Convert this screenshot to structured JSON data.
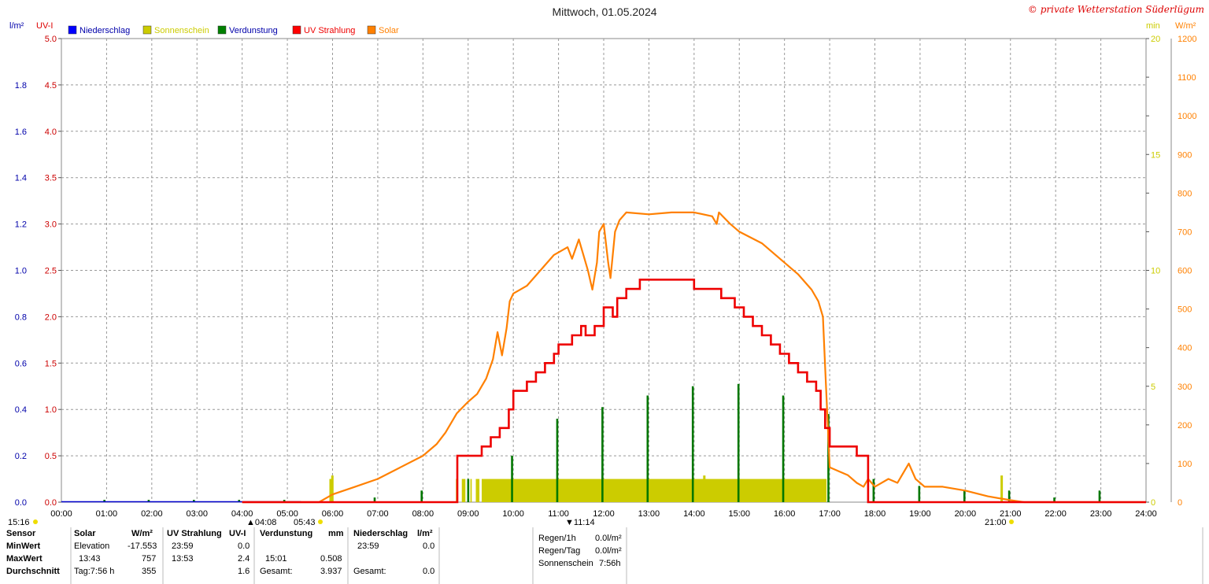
{
  "title": "Mittwoch, 01.05.2024",
  "copyright": "© private Wetterstation Süderlügum",
  "units": {
    "left1": "l/m²",
    "left2": "UV-I",
    "right1": "min",
    "right2": "W/m²"
  },
  "legend": [
    {
      "label": "Niederschlag",
      "color": "#0000ff",
      "text_color": "#0000aa"
    },
    {
      "label": "Sonnenschein",
      "color": "#cccc00",
      "text_color": "#cccc00"
    },
    {
      "label": "Verdunstung",
      "color": "#008000",
      "text_color": "#0000aa"
    },
    {
      "label": "UV Strahlung",
      "color": "#ff0000",
      "text_color": "#ee0000"
    },
    {
      "label": "Solar",
      "color": "#ff8000",
      "text_color": "#ff8000"
    }
  ],
  "colors": {
    "precip": "#0000cc",
    "uv": "#ee0000",
    "sun": "#cccc00",
    "solar": "#ff8000",
    "evap": "#007700",
    "axis": "#888888"
  },
  "chart_data": {
    "type": "line",
    "x_ticks": [
      "00:00",
      "01:00",
      "02:00",
      "03:00",
      "04:00",
      "05:00",
      "06:00",
      "07:00",
      "08:00",
      "09:00",
      "10:00",
      "11:00",
      "12:00",
      "13:00",
      "14:00",
      "15:00",
      "16:00",
      "17:00",
      "18:00",
      "19:00",
      "20:00",
      "21:00",
      "22:00",
      "23:00",
      "24:00"
    ],
    "axes": {
      "precip": {
        "range": [
          0,
          2.0
        ],
        "ticks": [
          "0.0",
          "0.2",
          "0.4",
          "0.6",
          "0.8",
          "1.0",
          "1.2",
          "1.4",
          "1.6",
          "1.8"
        ]
      },
      "uv": {
        "range": [
          0,
          5.0
        ],
        "ticks": [
          "0.0",
          "0.5",
          "1.0",
          "1.5",
          "2.0",
          "2.5",
          "3.0",
          "3.5",
          "4.0",
          "4.5",
          "5.0"
        ]
      },
      "sunshine": {
        "range": [
          0,
          20
        ],
        "ticks": [
          "0",
          "5",
          "10",
          "15",
          "20"
        ]
      },
      "solar": {
        "range": [
          0,
          1200
        ],
        "ticks": [
          "0",
          "100",
          "200",
          "300",
          "400",
          "500",
          "600",
          "700",
          "800",
          "900",
          "1000",
          "1100",
          "1200"
        ]
      }
    },
    "solar": [
      [
        4.0,
        0
      ],
      [
        5.7,
        0
      ],
      [
        6.0,
        20
      ],
      [
        6.5,
        40
      ],
      [
        7.0,
        60
      ],
      [
        7.5,
        90
      ],
      [
        8.0,
        120
      ],
      [
        8.3,
        150
      ],
      [
        8.5,
        180
      ],
      [
        8.75,
        230
      ],
      [
        9.0,
        260
      ],
      [
        9.2,
        280
      ],
      [
        9.4,
        320
      ],
      [
        9.55,
        370
      ],
      [
        9.65,
        440
      ],
      [
        9.75,
        380
      ],
      [
        9.85,
        450
      ],
      [
        9.92,
        520
      ],
      [
        10.0,
        540
      ],
      [
        10.3,
        560
      ],
      [
        10.6,
        600
      ],
      [
        10.9,
        640
      ],
      [
        11.2,
        660
      ],
      [
        11.3,
        630
      ],
      [
        11.45,
        680
      ],
      [
        11.55,
        640
      ],
      [
        11.65,
        600
      ],
      [
        11.75,
        550
      ],
      [
        11.85,
        620
      ],
      [
        11.9,
        700
      ],
      [
        12.0,
        720
      ],
      [
        12.1,
        620
      ],
      [
        12.15,
        580
      ],
      [
        12.25,
        700
      ],
      [
        12.35,
        730
      ],
      [
        12.5,
        750
      ],
      [
        13.0,
        745
      ],
      [
        13.5,
        750
      ],
      [
        14.0,
        750
      ],
      [
        14.4,
        740
      ],
      [
        14.5,
        720
      ],
      [
        14.55,
        750
      ],
      [
        14.8,
        720
      ],
      [
        15.0,
        700
      ],
      [
        15.5,
        670
      ],
      [
        16.0,
        620
      ],
      [
        16.3,
        590
      ],
      [
        16.6,
        550
      ],
      [
        16.75,
        520
      ],
      [
        16.85,
        480
      ],
      [
        16.9,
        350
      ],
      [
        16.95,
        220
      ],
      [
        17.0,
        90
      ],
      [
        17.2,
        80
      ],
      [
        17.4,
        70
      ],
      [
        17.6,
        50
      ],
      [
        17.75,
        40
      ],
      [
        17.85,
        60
      ],
      [
        18.0,
        40
      ],
      [
        18.3,
        60
      ],
      [
        18.5,
        50
      ],
      [
        18.75,
        100
      ],
      [
        18.9,
        60
      ],
      [
        19.1,
        40
      ],
      [
        19.5,
        40
      ],
      [
        20.0,
        30
      ],
      [
        20.5,
        15
      ],
      [
        21.0,
        5
      ],
      [
        21.3,
        0
      ],
      [
        24.0,
        0
      ]
    ],
    "uv": [
      [
        4.0,
        0
      ],
      [
        8.75,
        0
      ],
      [
        8.76,
        0.5
      ],
      [
        9.2,
        0.5
      ],
      [
        9.3,
        0.6
      ],
      [
        9.5,
        0.7
      ],
      [
        9.7,
        0.8
      ],
      [
        9.9,
        1.0
      ],
      [
        10.0,
        1.2
      ],
      [
        10.3,
        1.3
      ],
      [
        10.5,
        1.4
      ],
      [
        10.7,
        1.5
      ],
      [
        10.9,
        1.6
      ],
      [
        11.0,
        1.7
      ],
      [
        11.3,
        1.8
      ],
      [
        11.5,
        1.9
      ],
      [
        11.6,
        1.8
      ],
      [
        11.8,
        1.9
      ],
      [
        12.0,
        2.1
      ],
      [
        12.2,
        2.0
      ],
      [
        12.3,
        2.2
      ],
      [
        12.5,
        2.3
      ],
      [
        12.8,
        2.4
      ],
      [
        13.1,
        2.4
      ],
      [
        13.2,
        2.4
      ],
      [
        13.9,
        2.4
      ],
      [
        14.0,
        2.3
      ],
      [
        14.5,
        2.3
      ],
      [
        14.6,
        2.2
      ],
      [
        14.8,
        2.2
      ],
      [
        14.9,
        2.1
      ],
      [
        15.1,
        2.0
      ],
      [
        15.3,
        1.9
      ],
      [
        15.5,
        1.8
      ],
      [
        15.7,
        1.7
      ],
      [
        15.9,
        1.6
      ],
      [
        16.1,
        1.5
      ],
      [
        16.3,
        1.4
      ],
      [
        16.5,
        1.3
      ],
      [
        16.7,
        1.2
      ],
      [
        16.8,
        1.0
      ],
      [
        16.9,
        0.8
      ],
      [
        17.0,
        0.6
      ],
      [
        17.4,
        0.6
      ],
      [
        17.6,
        0.5
      ],
      [
        17.8,
        0.5
      ],
      [
        17.85,
        0
      ],
      [
        24.0,
        0
      ]
    ],
    "sunshine": {
      "segments": [
        [
          5.93,
          6.0
        ],
        [
          8.73,
          8.78
        ],
        [
          8.86,
          8.94
        ],
        [
          9.05,
          9.08
        ],
        [
          9.17,
          9.25
        ],
        [
          9.3,
          16.93
        ]
      ],
      "level": 1.0,
      "spikes": [
        [
          5.97,
          1.0
        ],
        [
          14.2,
          1.0
        ],
        [
          20.78,
          1.0
        ]
      ]
    },
    "evaporation": [
      [
        0.95,
        0.01
      ],
      [
        1.93,
        0.01
      ],
      [
        2.93,
        0.01
      ],
      [
        3.93,
        0.01
      ],
      [
        4.93,
        0.01
      ],
      [
        6.93,
        0.02
      ],
      [
        7.97,
        0.05
      ],
      [
        9.0,
        0.1
      ],
      [
        9.97,
        0.2
      ],
      [
        10.97,
        0.36
      ],
      [
        11.97,
        0.41
      ],
      [
        12.97,
        0.46
      ],
      [
        13.97,
        0.5
      ],
      [
        14.98,
        0.51
      ],
      [
        15.97,
        0.46
      ],
      [
        16.97,
        0.38
      ],
      [
        17.97,
        0.1
      ],
      [
        18.98,
        0.07
      ],
      [
        19.98,
        0.05
      ],
      [
        20.97,
        0.05
      ],
      [
        21.97,
        0.02
      ],
      [
        22.97,
        0.05
      ]
    ],
    "markers": {
      "left_time": "15:16",
      "dawn": "04:08",
      "sunrise": "05:43",
      "noon": "11:14",
      "sunset": "21:00"
    }
  },
  "table": {
    "headers": {
      "sensor": "Sensor",
      "solar": "Solar",
      "solar_unit": "W/m²",
      "uv": "UV Strahlung",
      "uv_unit": "UV-I",
      "evap": "Verdunstung",
      "evap_unit": "mm",
      "precip": "Niederschlag",
      "precip_unit": "l/m²"
    },
    "rows": [
      {
        "label": "MinWert",
        "solar_a": "Elevation",
        "solar_b": "-17.553",
        "uv_a": "23:59",
        "uv_b": "0.0",
        "evap_a": "",
        "evap_b": "",
        "precip_a": "23:59",
        "precip_b": "0.0"
      },
      {
        "label": "MaxWert",
        "solar_a": "13:43",
        "solar_b": "757",
        "uv_a": "13:53",
        "uv_b": "2.4",
        "evap_a": "15:01",
        "evap_b": "0.508",
        "precip_a": "",
        "precip_b": ""
      },
      {
        "label": "Durchschnitt",
        "solar_a": "Tag:7:56 h",
        "solar_b": "355",
        "uv_a": "",
        "uv_b": "1.6",
        "evap_a": "Gesamt:",
        "evap_b": "3.937",
        "precip_a": "Gesamt:",
        "precip_b": "0.0"
      }
    ],
    "summary": [
      {
        "label": "Regen/1h",
        "value": "0.0l/m²"
      },
      {
        "label": "Regen/Tag",
        "value": "0.0l/m²"
      },
      {
        "label": "Sonnenschein",
        "value": "7:56h"
      }
    ]
  }
}
